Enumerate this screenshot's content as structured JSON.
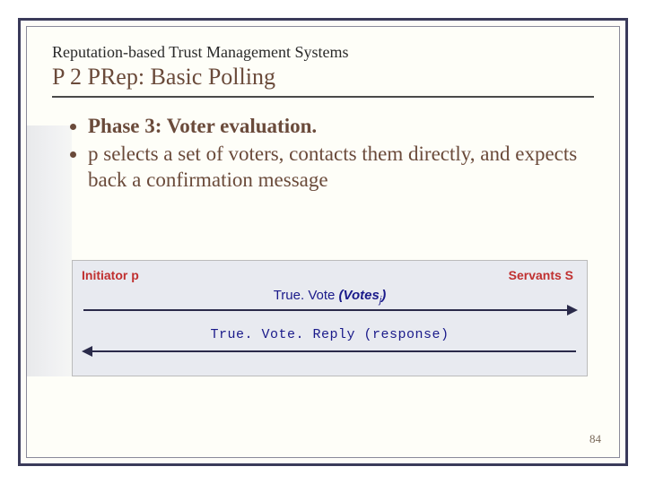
{
  "header": {
    "super_title": "Reputation-based Trust Management Systems",
    "main_title": "P 2 PRep:  Basic Polling"
  },
  "bullets": {
    "phase": "Phase 3: Voter evaluation.",
    "desc": "p selects a set of voters, contacts them directly, and expects back a confirmation message"
  },
  "diagram": {
    "initiator": "Initiator p",
    "servants": "Servants S",
    "msg1_prefix": "True. Vote ",
    "msg1_votes": "(Votes",
    "msg1_sub": "j",
    "msg1_suffix": ")",
    "msg2": "True. Vote. Reply (response)",
    "colors": {
      "label_red": "#c03030",
      "msg_blue": "#1a1a8a",
      "arrow": "#2a2a4a",
      "bg": "#e8eaf0"
    }
  },
  "page_number": "84",
  "theme": {
    "text_brown": "#6a4a3a",
    "border_dark": "#3a3a5a",
    "background": "#fefef8"
  }
}
